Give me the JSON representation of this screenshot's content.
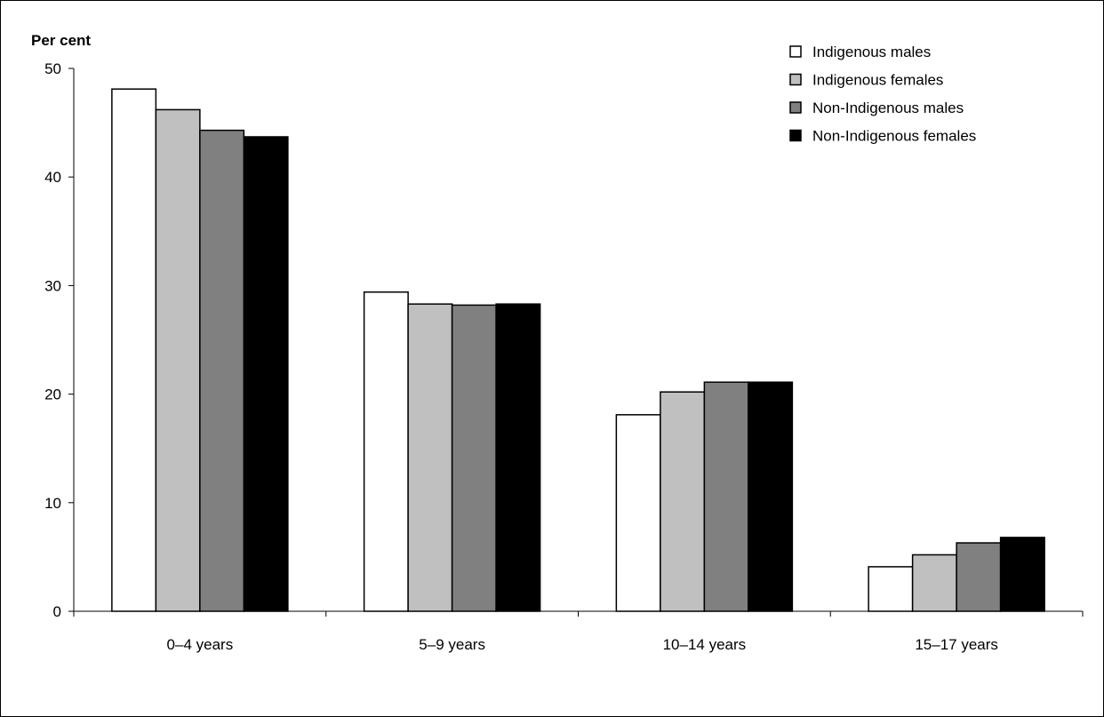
{
  "chart_data": {
    "type": "bar",
    "title": "",
    "xlabel": "",
    "ylabel": "Per cent",
    "ylim": [
      0,
      50
    ],
    "yticks": [
      0,
      10,
      20,
      30,
      40,
      50
    ],
    "grid": false,
    "legend_position": "top-right",
    "categories": [
      "0–4 years",
      "5–9 years",
      "10–14 years",
      "15–17 years"
    ],
    "series": [
      {
        "name": "Indigenous males",
        "color": "#ffffff",
        "values": [
          48.1,
          29.4,
          18.1,
          4.1
        ]
      },
      {
        "name": "Indigenous females",
        "color": "#c0c0c0",
        "values": [
          46.2,
          28.3,
          20.2,
          5.2
        ]
      },
      {
        "name": "Non-Indigenous males",
        "color": "#808080",
        "values": [
          44.3,
          28.2,
          21.1,
          6.3
        ]
      },
      {
        "name": "Non-Indigenous females",
        "color": "#000000",
        "values": [
          43.7,
          28.3,
          21.1,
          6.8
        ]
      }
    ]
  }
}
